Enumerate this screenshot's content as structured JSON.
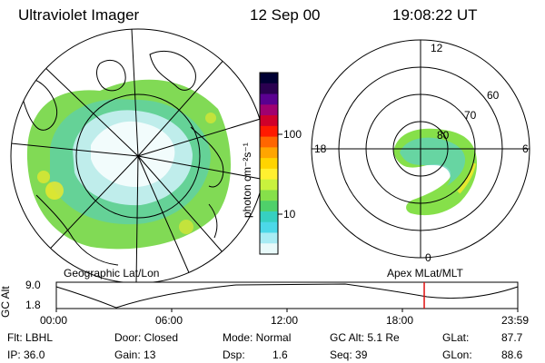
{
  "header": {
    "instrument": "Ultraviolet Imager",
    "date": "12 Sep 00",
    "time": "19:08:22 UT"
  },
  "geographic_map": {
    "label": "Geographic Lat/Lon"
  },
  "colorbar": {
    "unit_label": "photon cm⁻²s⁻¹",
    "tick_high": "100",
    "tick_low": "10",
    "colors": [
      "#000033",
      "#2a0050",
      "#5a0090",
      "#a00070",
      "#d0002a",
      "#ff1a00",
      "#ff6600",
      "#ffa500",
      "#ffd400",
      "#fff030",
      "#c9f23d",
      "#86e04a",
      "#4fd06a",
      "#36d0c0",
      "#4cd8e8",
      "#a8ecf4",
      "#e8fafa"
    ]
  },
  "polar_plot": {
    "label": "Apex MLat/MLT",
    "mlt_top": "12",
    "mlt_right": "6",
    "mlt_bottom": "0",
    "mlt_left": "18",
    "lat_60": "60",
    "lat_70": "70",
    "lat_80": "80"
  },
  "altitude_chart": {
    "ylabel": "GC Alt",
    "y_high": "9.0",
    "y_low": "1.8",
    "x_ticks": [
      "00:00",
      "06:00",
      "12:00",
      "18:00",
      "23:59"
    ],
    "current_time_fraction": 0.7973
  },
  "footer": {
    "filter": "Flt: LBHL",
    "ip": "IP: 36.0",
    "door": "Door: Closed",
    "gain": "Gain: 13",
    "mode": "Mode: Normal",
    "dsp_label": "Dsp:",
    "dsp_value": "1.6",
    "gc_alt": "GC Alt: 5.1 Re",
    "seq": "Seq: 39",
    "glat_label": "GLat:",
    "glat_value": "87.7",
    "glon_label": "GLon:",
    "glon_value": "88.6"
  }
}
